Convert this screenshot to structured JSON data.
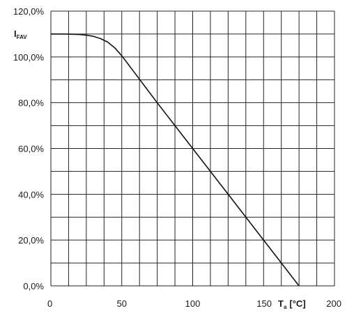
{
  "chart_data": {
    "type": "line",
    "xlabel": {
      "main": "T",
      "sub": "a",
      "unit": "[°C]"
    },
    "ylabel": {
      "main": "I",
      "sub": "FAV"
    },
    "xlim": [
      0,
      200
    ],
    "ylim": [
      0,
      120
    ],
    "x_ticks": [
      0,
      50,
      100,
      150,
      200
    ],
    "x_tick_labels": [
      "0",
      "50",
      "100",
      "150",
      "200"
    ],
    "y_ticks": [
      0,
      20,
      40,
      60,
      80,
      100,
      120
    ],
    "y_tick_labels": [
      "0,0%",
      "20,0%",
      "40,0%",
      "60,0%",
      "80,0%",
      "100,0%",
      "120,0%"
    ],
    "grid": true,
    "grid_x_step": 12.5,
    "grid_y_step": 10,
    "series": [
      {
        "x": [
          0,
          10,
          20,
          25,
          30,
          35,
          40,
          45,
          50,
          75,
          100,
          125,
          150,
          175
        ],
        "values": [
          110,
          110,
          109.8,
          109.5,
          109,
          108,
          106.5,
          104,
          100.5,
          80,
          60,
          40,
          20,
          0
        ]
      }
    ]
  },
  "colors": {
    "line": "#111111",
    "grid": "#222222",
    "text": "#1a1a1a",
    "background": "#ffffff"
  }
}
